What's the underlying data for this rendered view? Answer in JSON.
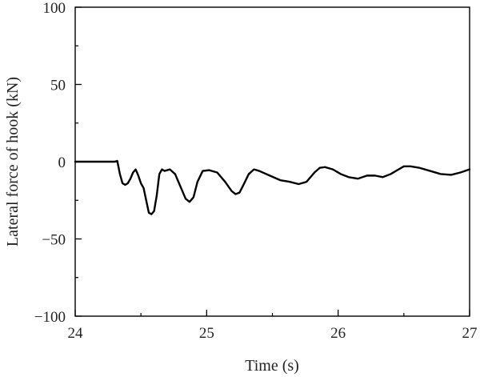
{
  "chart_data": {
    "type": "line",
    "title": "",
    "xlabel": "Time (s)",
    "ylabel": "Lateral force of hook (kN)",
    "xlim": [
      24,
      27
    ],
    "ylim": [
      -100,
      100
    ],
    "x_ticks": [
      24,
      25,
      26,
      27
    ],
    "x_tick_labels": [
      "24",
      "25",
      "26",
      "27"
    ],
    "y_ticks": [
      -100,
      -50,
      0,
      50,
      100
    ],
    "y_tick_labels": [
      "−100",
      "−50",
      "0",
      "50",
      "100"
    ],
    "grid": false,
    "legend": "none",
    "line_color": "#000000",
    "series": [
      {
        "x": [
          24.0,
          24.2,
          24.3,
          24.32,
          24.34,
          24.36,
          24.38,
          24.4,
          24.42,
          24.44,
          24.46,
          24.48,
          24.5,
          24.52,
          24.54,
          24.56,
          24.58,
          24.6,
          24.62,
          24.64,
          24.66,
          24.68,
          24.72,
          24.76,
          24.8,
          24.84,
          24.87,
          24.9,
          24.93,
          24.97,
          25.02,
          25.08,
          25.14,
          25.19,
          25.22,
          25.25,
          25.28,
          25.32,
          25.36,
          25.4,
          25.48,
          25.56,
          25.63,
          25.7,
          25.76,
          25.82,
          25.86,
          25.9,
          25.96,
          26.02,
          26.08,
          26.15,
          26.22,
          26.28,
          26.34,
          26.4,
          26.46,
          26.5,
          26.55,
          26.62,
          26.7,
          26.78,
          26.86,
          26.93,
          27.0
        ],
        "y": [
          0,
          0,
          0,
          0.5,
          -8,
          -14,
          -15,
          -14,
          -11,
          -7,
          -5,
          -9,
          -14,
          -17,
          -25,
          -33,
          -34,
          -32,
          -22,
          -8,
          -5,
          -6,
          -5,
          -8,
          -16,
          -24,
          -26,
          -23,
          -13,
          -6,
          -5.5,
          -7,
          -13,
          -19,
          -21,
          -20,
          -15,
          -8,
          -5,
          -6,
          -9,
          -12,
          -13,
          -14.5,
          -13,
          -7,
          -4,
          -3.5,
          -5,
          -8,
          -10,
          -11,
          -9,
          -9,
          -10,
          -8,
          -5,
          -3,
          -3,
          -4,
          -6,
          -8,
          -8.5,
          -7,
          -5
        ]
      }
    ]
  }
}
